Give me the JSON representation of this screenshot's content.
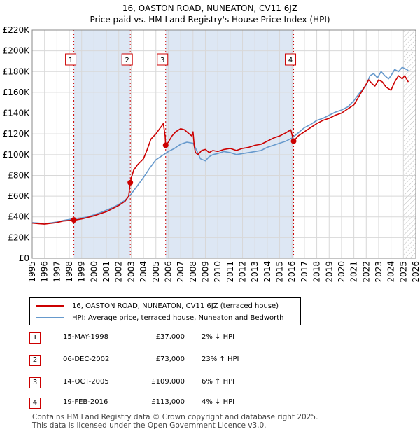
{
  "title_line1": "16, OASTON ROAD, NUNEATON, CV11 6JZ",
  "title_line2": "Price paid vs. HM Land Registry's House Price Index (HPI)",
  "colors": {
    "price_line": "#cc0000",
    "hpi_line": "#6699cc",
    "band": "#dde7f4",
    "grid": "#d8d8d8",
    "marker_line": "#cc0000"
  },
  "chart_data": {
    "type": "line",
    "xlim": [
      1995,
      2026
    ],
    "ylim": [
      0,
      220000
    ],
    "x_ticks": [
      1995,
      1996,
      1997,
      1998,
      1999,
      2000,
      2001,
      2002,
      2003,
      2004,
      2005,
      2006,
      2007,
      2008,
      2009,
      2010,
      2011,
      2012,
      2013,
      2014,
      2015,
      2016,
      2017,
      2018,
      2019,
      2020,
      2021,
      2022,
      2023,
      2024,
      2025,
      2026
    ],
    "y_ticks": [
      {
        "value": 0,
        "label": "£0"
      },
      {
        "value": 20000,
        "label": "£20K"
      },
      {
        "value": 40000,
        "label": "£40K"
      },
      {
        "value": 60000,
        "label": "£60K"
      },
      {
        "value": 80000,
        "label": "£80K"
      },
      {
        "value": 100000,
        "label": "£100K"
      },
      {
        "value": 120000,
        "label": "£120K"
      },
      {
        "value": 140000,
        "label": "£140K"
      },
      {
        "value": 160000,
        "label": "£160K"
      },
      {
        "value": 180000,
        "label": "£180K"
      },
      {
        "value": 200000,
        "label": "£200K"
      },
      {
        "value": 220000,
        "label": "£220K"
      }
    ],
    "bands": [
      [
        1998.37,
        2002.93
      ],
      [
        2005.79,
        2016.13
      ]
    ],
    "hatch_from": 2025.0,
    "series": [
      {
        "name": "16, OASTON ROAD, NUNEATON, CV11 6JZ (terraced house)",
        "x": [
          1995.0,
          1995.5,
          1996.0,
          1996.5,
          1997.0,
          1997.5,
          1998.0,
          1998.37,
          1998.6,
          1999.0,
          1999.5,
          2000.0,
          2000.5,
          2001.0,
          2001.5,
          2002.0,
          2002.5,
          2002.8,
          2002.93,
          2003.0,
          2003.2,
          2003.5,
          2004.0,
          2004.3,
          2004.6,
          2005.0,
          2005.3,
          2005.5,
          2005.6,
          2005.75,
          2005.79,
          2006.0,
          2006.3,
          2006.6,
          2007.0,
          2007.3,
          2007.6,
          2007.9,
          2008.0,
          2008.1,
          2008.2,
          2008.4,
          2008.7,
          2009.0,
          2009.3,
          2009.6,
          2010.0,
          2010.5,
          2011.0,
          2011.5,
          2012.0,
          2012.5,
          2013.0,
          2013.5,
          2014.0,
          2014.5,
          2015.0,
          2015.5,
          2015.9,
          2016.13,
          2016.5,
          2017.0,
          2017.5,
          2018.0,
          2018.5,
          2019.0,
          2019.5,
          2020.0,
          2020.5,
          2021.0,
          2021.5,
          2022.0,
          2022.2,
          2022.5,
          2022.7,
          2023.0,
          2023.3,
          2023.6,
          2024.0,
          2024.3,
          2024.6,
          2024.9,
          2025.1,
          2025.4
        ],
        "values": [
          34000,
          33500,
          33000,
          33800,
          34500,
          36000,
          36500,
          37000,
          37200,
          38000,
          39500,
          41000,
          43000,
          45000,
          48000,
          51000,
          55000,
          60000,
          73000,
          77000,
          85000,
          90000,
          96000,
          105000,
          115000,
          120000,
          125000,
          128000,
          130000,
          118000,
          109000,
          112000,
          118000,
          122000,
          125000,
          124000,
          121000,
          118000,
          122000,
          108000,
          102000,
          100000,
          104000,
          105000,
          102000,
          104000,
          103000,
          105000,
          106000,
          104000,
          106000,
          107000,
          109000,
          110000,
          113000,
          116000,
          118000,
          121000,
          124000,
          113000,
          118000,
          122000,
          126000,
          130000,
          133000,
          135000,
          138000,
          140000,
          144000,
          148000,
          158000,
          168000,
          172000,
          168000,
          166000,
          172000,
          170000,
          165000,
          162000,
          170000,
          176000,
          173000,
          176000,
          170000
        ]
      },
      {
        "name": "HPI: Average price, terraced house, Nuneaton and Bedworth",
        "x": [
          1995.0,
          1995.5,
          1996.0,
          1996.5,
          1997.0,
          1997.5,
          1998.0,
          1998.5,
          1999.0,
          1999.5,
          2000.0,
          2000.5,
          2001.0,
          2001.5,
          2002.0,
          2002.5,
          2003.0,
          2003.5,
          2004.0,
          2004.5,
          2005.0,
          2005.5,
          2006.0,
          2006.5,
          2007.0,
          2007.5,
          2008.0,
          2008.3,
          2008.6,
          2009.0,
          2009.3,
          2009.6,
          2010.0,
          2010.5,
          2011.0,
          2011.5,
          2012.0,
          2012.5,
          2013.0,
          2013.5,
          2014.0,
          2014.5,
          2015.0,
          2015.5,
          2016.0,
          2016.5,
          2017.0,
          2017.5,
          2018.0,
          2018.5,
          2019.0,
          2019.5,
          2020.0,
          2020.5,
          2021.0,
          2021.5,
          2022.0,
          2022.3,
          2022.6,
          2022.9,
          2023.2,
          2023.5,
          2023.8,
          2024.0,
          2024.3,
          2024.6,
          2024.9,
          2025.1,
          2025.4
        ],
        "values": [
          34500,
          34000,
          33500,
          34200,
          35000,
          36500,
          37500,
          38500,
          39000,
          40000,
          42000,
          44000,
          46500,
          49000,
          52000,
          56000,
          62000,
          70000,
          78000,
          87000,
          95000,
          99000,
          103000,
          106000,
          110000,
          112000,
          111000,
          104000,
          96000,
          94000,
          98000,
          100000,
          101000,
          103000,
          102000,
          100000,
          101000,
          102000,
          103000,
          104000,
          107000,
          109000,
          111000,
          113000,
          116000,
          121000,
          126000,
          129000,
          133000,
          135000,
          138000,
          141000,
          143000,
          146000,
          152000,
          160000,
          167000,
          176000,
          178000,
          174000,
          180000,
          176000,
          173000,
          176000,
          182000,
          180000,
          184000,
          183000,
          181000
        ]
      }
    ],
    "transactions": [
      {
        "num": "1",
        "x": 1998.37,
        "value": 37000,
        "date": "15-MAY-1998",
        "price": "£37,000",
        "hpi": "2% ↓ HPI"
      },
      {
        "num": "2",
        "x": 2002.93,
        "value": 73000,
        "date": "06-DEC-2002",
        "price": "£73,000",
        "hpi": "23% ↑ HPI"
      },
      {
        "num": "3",
        "x": 2005.79,
        "value": 109000,
        "date": "14-OCT-2005",
        "price": "£109,000",
        "hpi": "6% ↑ HPI"
      },
      {
        "num": "4",
        "x": 2016.13,
        "value": 113000,
        "date": "19-FEB-2016",
        "price": "£113,000",
        "hpi": "4% ↓ HPI"
      }
    ]
  },
  "legend": {
    "price_label": "16, OASTON ROAD, NUNEATON, CV11 6JZ (terraced house)",
    "hpi_label": "HPI: Average price, terraced house, Nuneaton and Bedworth"
  },
  "footer": {
    "line1": "Contains HM Land Registry data © Crown copyright and database right 2025.",
    "line2": "This data is licensed under the Open Government Licence v3.0."
  }
}
